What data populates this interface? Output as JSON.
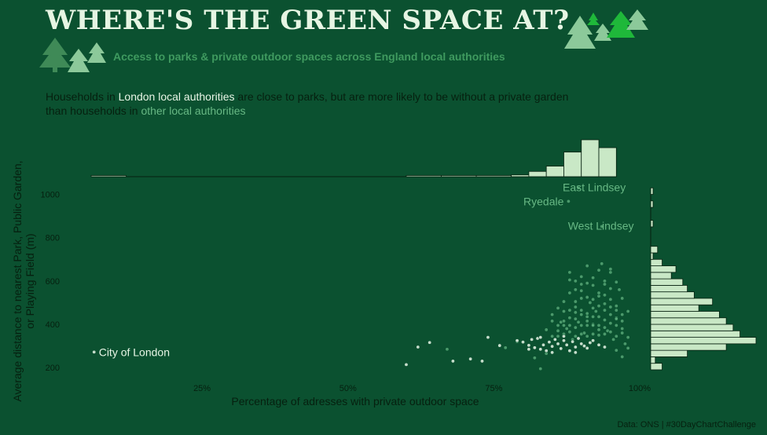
{
  "title": "WHERE'S THE GREEN SPACE AT?",
  "subtitle": "Access to parks & private outdoor spaces across England local authorities",
  "description": {
    "p1": "Households in ",
    "london": "London local authorities",
    "p2": " are close to parks, but are more likely to be without a private garden",
    "p3": "than households in ",
    "other": "other local authorities"
  },
  "caption": "Data: ONS | #30DayChartChallenge",
  "colors": {
    "background": "#0b5130",
    "london": "#e8f6e6",
    "other": "#67b884",
    "histogram_fill": "#c9e8c6",
    "dark_text": "#06200f"
  },
  "chart_data": {
    "type": "scatter",
    "xlabel": "Percentage of adresses with private outdoor space",
    "ylabel": "Average distance to nearest Park, Public Garden, or Playing Field (m)",
    "ylabel_lines": [
      "Average distance to nearest Park, Public Garden,",
      "or Playing Field (m)"
    ],
    "xlim": [
      6,
      100
    ],
    "ylim": [
      150,
      1060
    ],
    "x_ticks": [
      {
        "value": 25,
        "label": "25%"
      },
      {
        "value": 50,
        "label": "50%"
      },
      {
        "value": 75,
        "label": "75%"
      },
      {
        "value": 100,
        "label": "100%"
      }
    ],
    "y_ticks": [
      200,
      400,
      600,
      800,
      1000
    ],
    "grid": false,
    "annotations": [
      {
        "label": "City of London",
        "x": 6.5,
        "y": 272,
        "group": "london"
      },
      {
        "label": "East Lindsey",
        "x": 89.5,
        "y": 1030,
        "group": "other"
      },
      {
        "label": "Ryedale",
        "x": 87.8,
        "y": 968,
        "group": "other"
      },
      {
        "label": "West Lindsey",
        "x": 93.5,
        "y": 852,
        "group": "other"
      }
    ],
    "series": [
      {
        "group": "london",
        "points": [
          [
            6.5,
            272
          ],
          [
            60,
            214
          ],
          [
            64,
            316
          ],
          [
            62,
            295
          ],
          [
            68,
            230
          ],
          [
            71,
            240
          ],
          [
            73,
            230
          ],
          [
            74,
            340
          ],
          [
            76,
            302
          ],
          [
            79,
            325
          ],
          [
            80,
            318
          ],
          [
            81,
            303
          ],
          [
            81.5,
            330
          ],
          [
            82,
            292
          ],
          [
            82.5,
            335
          ],
          [
            83,
            285
          ],
          [
            83.5,
            305
          ],
          [
            84,
            278
          ],
          [
            84.5,
            318
          ],
          [
            85,
            298
          ],
          [
            85.5,
            330
          ],
          [
            86,
            310
          ],
          [
            86.5,
            288
          ],
          [
            87,
            325
          ],
          [
            87.5,
            305
          ],
          [
            88,
            278
          ],
          [
            88.5,
            320
          ],
          [
            89,
            295
          ],
          [
            89.5,
            335
          ],
          [
            90,
            310
          ],
          [
            90.5,
            300
          ],
          [
            91,
            290
          ],
          [
            91.5,
            315
          ],
          [
            92,
            325
          ],
          [
            93,
            305
          ],
          [
            94,
            295
          ],
          [
            81,
            285
          ],
          [
            83,
            340
          ],
          [
            85,
            270
          ],
          [
            87,
            345
          ],
          [
            89,
            270
          ]
        ]
      },
      {
        "group": "other",
        "points": [
          [
            67,
            285
          ],
          [
            77,
            292
          ],
          [
            79,
            320
          ],
          [
            82,
            245
          ],
          [
            83,
            195
          ],
          [
            84,
            265
          ],
          [
            85,
            345
          ],
          [
            86,
            370
          ],
          [
            86.5,
            410
          ],
          [
            87,
            460
          ],
          [
            87.5,
            380
          ],
          [
            88,
            430
          ],
          [
            88,
            640
          ],
          [
            88.5,
            330
          ],
          [
            89,
            480
          ],
          [
            89,
            560
          ],
          [
            89.5,
            410
          ],
          [
            90,
            520
          ],
          [
            90,
            620
          ],
          [
            90.5,
            360
          ],
          [
            91,
            450
          ],
          [
            91,
            670
          ],
          [
            91.5,
            500
          ],
          [
            92,
            400
          ],
          [
            92,
            580
          ],
          [
            92.5,
            460
          ],
          [
            93,
            350
          ],
          [
            93,
            530
          ],
          [
            93.5,
            680
          ],
          [
            94,
            420
          ],
          [
            94,
            600
          ],
          [
            94.5,
            370
          ],
          [
            95,
            480
          ],
          [
            95,
            640
          ],
          [
            95.5,
            330
          ],
          [
            96,
            430
          ],
          [
            96.5,
            560
          ],
          [
            97,
            380
          ],
          [
            97.5,
            310
          ],
          [
            98,
            340
          ],
          [
            87,
            505
          ],
          [
            88,
            545
          ],
          [
            89,
            385
          ],
          [
            90,
            445
          ],
          [
            91,
            525
          ],
          [
            92,
            475
          ],
          [
            93,
            435
          ],
          [
            94,
            495
          ],
          [
            95,
            405
          ],
          [
            96,
            465
          ],
          [
            97,
            415
          ],
          [
            85,
            415
          ],
          [
            86,
            475
          ],
          [
            87,
            355
          ],
          [
            88,
            395
          ],
          [
            89,
            455
          ],
          [
            90,
            585
          ],
          [
            91,
            395
          ],
          [
            92,
            355
          ],
          [
            93,
            485
          ],
          [
            94,
            535
          ],
          [
            95,
            565
          ],
          [
            96,
            395
          ],
          [
            97,
            445
          ],
          [
            89,
            345
          ],
          [
            90,
            395
          ],
          [
            91,
            345
          ],
          [
            92,
            435
          ],
          [
            93,
            395
          ],
          [
            94,
            355
          ],
          [
            95,
            445
          ],
          [
            96,
            345
          ],
          [
            86,
            345
          ],
          [
            87,
            415
          ],
          [
            88,
            465
          ],
          [
            89,
            505
          ],
          [
            90,
            465
          ],
          [
            91,
            415
          ],
          [
            92,
            515
          ],
          [
            93,
            545
          ],
          [
            94,
            465
          ],
          [
            95,
            515
          ],
          [
            96,
            485
          ],
          [
            84,
            375
          ],
          [
            85,
            445
          ],
          [
            86,
            395
          ],
          [
            87,
            395
          ],
          [
            88,
            365
          ],
          [
            89,
            425
          ],
          [
            90,
            355
          ],
          [
            91,
            435
          ],
          [
            92,
            395
          ],
          [
            93,
            375
          ],
          [
            94,
            385
          ],
          [
            95,
            365
          ],
          [
            96,
            425
          ],
          [
            88,
            605
          ],
          [
            90,
            555
          ],
          [
            92,
            615
          ],
          [
            94,
            585
          ],
          [
            95,
            655
          ],
          [
            96,
            595
          ],
          [
            93,
            650
          ],
          [
            91,
            590
          ],
          [
            89,
            600
          ],
          [
            97,
            520
          ],
          [
            98,
            460
          ],
          [
            97,
            360
          ],
          [
            98,
            290
          ],
          [
            96,
            280
          ],
          [
            97,
            250
          ],
          [
            89.5,
            1030
          ],
          [
            87.8,
            968
          ],
          [
            93.5,
            852
          ]
        ]
      }
    ],
    "top_histogram": {
      "bin_edges": [
        6,
        12,
        18,
        24,
        30,
        36,
        42,
        48,
        54,
        60,
        66,
        72,
        78,
        81,
        84,
        87,
        90,
        93,
        96
      ],
      "counts": [
        1,
        0,
        0,
        0,
        0,
        0,
        0,
        0,
        0,
        1,
        1,
        1,
        2,
        6,
        12,
        28,
        42,
        33,
        17
      ]
    },
    "right_histogram": {
      "bin_edges": [
        190,
        220,
        250,
        280,
        310,
        340,
        370,
        400,
        430,
        460,
        490,
        520,
        550,
        580,
        610,
        640,
        670,
        700,
        730,
        760,
        790,
        820,
        850,
        880,
        910,
        940,
        970,
        1000,
        1030
      ],
      "counts": [
        5,
        2,
        16,
        33,
        46,
        39,
        36,
        33,
        30,
        21,
        27,
        19,
        16,
        14,
        9,
        11,
        5,
        1,
        3,
        0,
        0,
        0,
        1,
        0,
        0,
        1,
        0,
        1,
        1
      ]
    }
  }
}
